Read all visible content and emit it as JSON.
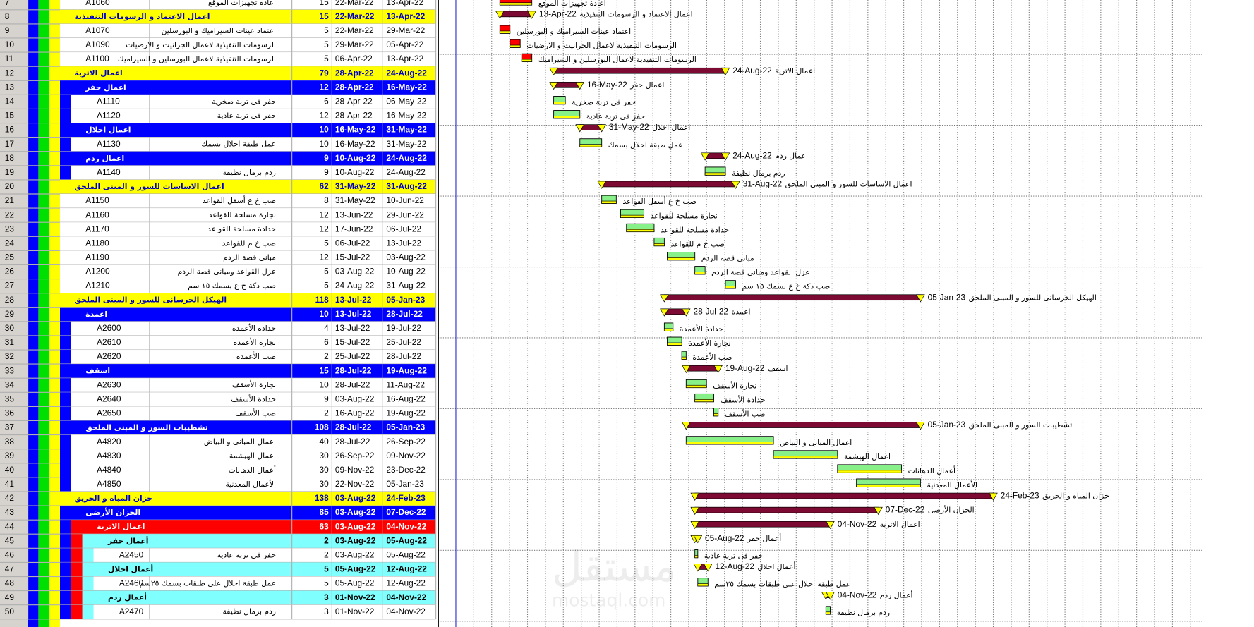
{
  "settings": {
    "level_colors": [
      "#ffff00",
      "#0000ff",
      "#ff0000",
      "#80ffff"
    ],
    "level_text_colors": [
      "#0000c0",
      "#ffffff",
      "#ffffff",
      "#000000"
    ],
    "summary_bar_color": "#7d0a32",
    "bar_color": "#88f088",
    "critical_bar_color": "#ff0000",
    "milestone_color": "#ffff00"
  },
  "watermark": {
    "brand": "مستقل",
    "site": "mostaql.com"
  },
  "table": {
    "rows": [
      {
        "num": 7,
        "level": 2,
        "id": "A1060",
        "name": "اعادة تجهيزات الموقع",
        "duration": 15,
        "start": "22-Mar-22",
        "finish": "13-Apr-22",
        "critical": true
      },
      {
        "num": 8,
        "level": 1,
        "name": "اعمال الاعتماد و الرسومات التنفيذية",
        "duration": 15,
        "start": "22-Mar-22",
        "finish": "13-Apr-22"
      },
      {
        "num": 9,
        "level": 2,
        "id": "A1070",
        "name": "اعتماد عينات السيراميك و البورسلين",
        "duration": 5,
        "start": "22-Mar-22",
        "finish": "29-Mar-22",
        "critical": true
      },
      {
        "num": 10,
        "level": 2,
        "id": "A1090",
        "name": "الرسومات التنفيذية لاعمال الجرانيت و الارضيات",
        "duration": 5,
        "start": "29-Mar-22",
        "finish": "05-Apr-22",
        "critical": true
      },
      {
        "num": 11,
        "level": 2,
        "id": "A1100",
        "name": "الرسومات التنفيذية لاعمال البورسلين و السيراميك",
        "duration": 5,
        "start": "06-Apr-22",
        "finish": "13-Apr-22",
        "critical": true
      },
      {
        "num": 12,
        "level": 1,
        "name": "اعمال الاترية",
        "duration": 79,
        "start": "28-Apr-22",
        "finish": "24-Aug-22"
      },
      {
        "num": 13,
        "level": 2,
        "name": "اعمال حفر",
        "duration": 12,
        "start": "28-Apr-22",
        "finish": "16-May-22"
      },
      {
        "num": 14,
        "level": 3,
        "id": "A1110",
        "name": "حفر فى تربة صخرية",
        "duration": 6,
        "start": "28-Apr-22",
        "finish": "06-May-22"
      },
      {
        "num": 15,
        "level": 3,
        "id": "A1120",
        "name": "حفر فى تربة عادية",
        "duration": 12,
        "start": "28-Apr-22",
        "finish": "16-May-22"
      },
      {
        "num": 16,
        "level": 2,
        "name": "اعمال احلال",
        "duration": 10,
        "start": "16-May-22",
        "finish": "31-May-22"
      },
      {
        "num": 17,
        "level": 3,
        "id": "A1130",
        "name": "عمل طبقة احلال بسمك",
        "duration": 10,
        "start": "16-May-22",
        "finish": "31-May-22"
      },
      {
        "num": 18,
        "level": 2,
        "name": "اعمال ردم",
        "duration": 9,
        "start": "10-Aug-22",
        "finish": "24-Aug-22"
      },
      {
        "num": 19,
        "level": 3,
        "id": "A1140",
        "name": "ردم برمال نظيفة",
        "duration": 9,
        "start": "10-Aug-22",
        "finish": "24-Aug-22"
      },
      {
        "num": 20,
        "level": 1,
        "name": "اعمال الاساسات للسور و المبنى الملحق",
        "duration": 62,
        "start": "31-May-22",
        "finish": "31-Aug-22"
      },
      {
        "num": 21,
        "level": 2,
        "id": "A1150",
        "name": "صب خ ع أسفل القواعد",
        "duration": 8,
        "start": "31-May-22",
        "finish": "10-Jun-22"
      },
      {
        "num": 22,
        "level": 2,
        "id": "A1160",
        "name": "نجارة مسلحة للقواعد",
        "duration": 12,
        "start": "13-Jun-22",
        "finish": "29-Jun-22"
      },
      {
        "num": 23,
        "level": 2,
        "id": "A1170",
        "name": "حدادة مسلحة للقواعد",
        "duration": 12,
        "start": "17-Jun-22",
        "finish": "06-Jul-22"
      },
      {
        "num": 24,
        "level": 2,
        "id": "A1180",
        "name": "صب خ م للقواعد",
        "duration": 5,
        "start": "06-Jul-22",
        "finish": "13-Jul-22"
      },
      {
        "num": 25,
        "level": 2,
        "id": "A1190",
        "name": "مبانى قصة الردم",
        "duration": 12,
        "start": "15-Jul-22",
        "finish": "03-Aug-22"
      },
      {
        "num": 26,
        "level": 2,
        "id": "A1200",
        "name": "عزل القواعد ومبانى قصة الردم",
        "duration": 5,
        "start": "03-Aug-22",
        "finish": "10-Aug-22"
      },
      {
        "num": 27,
        "level": 2,
        "id": "A1210",
        "name": "صب دكة خ ع بسمك ١٥ سم",
        "duration": 5,
        "start": "24-Aug-22",
        "finish": "31-Aug-22"
      },
      {
        "num": 28,
        "level": 1,
        "name": "الهيكل الخرسانى للسور و المبنى الملحق",
        "duration": 118,
        "start": "13-Jul-22",
        "finish": "05-Jan-23"
      },
      {
        "num": 29,
        "level": 2,
        "name": "اعمدة",
        "duration": 10,
        "start": "13-Jul-22",
        "finish": "28-Jul-22"
      },
      {
        "num": 30,
        "level": 3,
        "id": "A2600",
        "name": "حدادة الأعمدة",
        "duration": 4,
        "start": "13-Jul-22",
        "finish": "19-Jul-22"
      },
      {
        "num": 31,
        "level": 3,
        "id": "A2610",
        "name": "نجارة الأعمدة",
        "duration": 6,
        "start": "15-Jul-22",
        "finish": "25-Jul-22"
      },
      {
        "num": 32,
        "level": 3,
        "id": "A2620",
        "name": "صب الأعمدة",
        "duration": 2,
        "start": "25-Jul-22",
        "finish": "28-Jul-22"
      },
      {
        "num": 33,
        "level": 2,
        "name": "اسقف",
        "duration": 15,
        "start": "28-Jul-22",
        "finish": "19-Aug-22"
      },
      {
        "num": 34,
        "level": 3,
        "id": "A2630",
        "name": "نجارة الأسقف",
        "duration": 10,
        "start": "28-Jul-22",
        "finish": "11-Aug-22"
      },
      {
        "num": 35,
        "level": 3,
        "id": "A2640",
        "name": "حدادة الأسقف",
        "duration": 9,
        "start": "03-Aug-22",
        "finish": "16-Aug-22"
      },
      {
        "num": 36,
        "level": 3,
        "id": "A2650",
        "name": "صب الأسقف",
        "duration": 2,
        "start": "16-Aug-22",
        "finish": "19-Aug-22"
      },
      {
        "num": 37,
        "level": 2,
        "name": "تشطيبات السور و المبنى الملحق",
        "duration": 108,
        "start": "28-Jul-22",
        "finish": "05-Jan-23"
      },
      {
        "num": 38,
        "level": 3,
        "id": "A4820",
        "name": "اعمال المبانى و البياض",
        "duration": 40,
        "start": "28-Jul-22",
        "finish": "26-Sep-22"
      },
      {
        "num": 39,
        "level": 3,
        "id": "A4830",
        "name": "اعمال الهيشمة",
        "duration": 30,
        "start": "26-Sep-22",
        "finish": "09-Nov-22"
      },
      {
        "num": 40,
        "level": 3,
        "id": "A4840",
        "name": "أعمال الدهانات",
        "duration": 30,
        "start": "09-Nov-22",
        "finish": "23-Dec-22"
      },
      {
        "num": 41,
        "level": 3,
        "id": "A4850",
        "name": "الأعمال المعدنية",
        "duration": 30,
        "start": "22-Nov-22",
        "finish": "05-Jan-23"
      },
      {
        "num": 42,
        "level": 1,
        "name": "خزان المياه و الحريق",
        "duration": 138,
        "start": "03-Aug-22",
        "finish": "24-Feb-23"
      },
      {
        "num": 43,
        "level": 2,
        "name": "الخزان الأرضى",
        "duration": 85,
        "start": "03-Aug-22",
        "finish": "07-Dec-22"
      },
      {
        "num": 44,
        "level": 3,
        "name": "اعمال الاترية",
        "duration": 63,
        "start": "03-Aug-22",
        "finish": "04-Nov-22"
      },
      {
        "num": 45,
        "level": 4,
        "name": "أعمال حفر",
        "duration": 2,
        "start": "03-Aug-22",
        "finish": "05-Aug-22"
      },
      {
        "num": 46,
        "level": 5,
        "id": "A2450",
        "name": "حفر فى تربة عادية",
        "duration": 2,
        "start": "03-Aug-22",
        "finish": "05-Aug-22"
      },
      {
        "num": 47,
        "level": 4,
        "name": "أعمال احلال",
        "duration": 5,
        "start": "05-Aug-22",
        "finish": "12-Aug-22"
      },
      {
        "num": 48,
        "level": 5,
        "id": "A2460",
        "name": "عمل طبقة احلال على طبقات بسمك ٢٥سم",
        "duration": 5,
        "start": "05-Aug-22",
        "finish": "12-Aug-22"
      },
      {
        "num": 49,
        "level": 4,
        "name": "أعمال ردم",
        "duration": 3,
        "start": "01-Nov-22",
        "finish": "04-Nov-22"
      },
      {
        "num": 50,
        "level": 5,
        "id": "A2470",
        "name": "ردم برمال نظيفة",
        "duration": 3,
        "start": "01-Nov-22",
        "finish": "04-Nov-22"
      }
    ]
  }
}
